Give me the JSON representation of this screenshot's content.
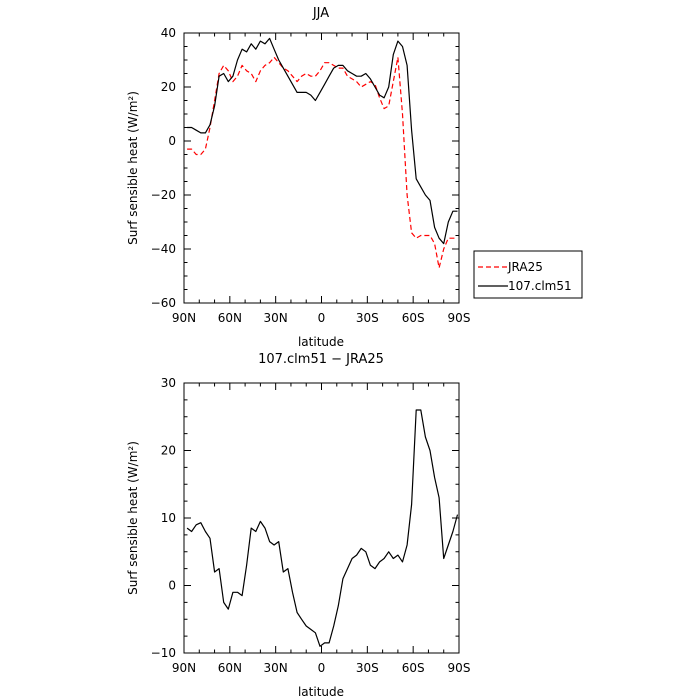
{
  "chart_data": [
    {
      "type": "line",
      "title": "JJA",
      "xlabel": "latitude",
      "ylabel": "Surf sensible heat (W/m²)",
      "xlim": [
        90,
        -90
      ],
      "ylim": [
        -60,
        40
      ],
      "x_ticks": [
        90,
        60,
        30,
        0,
        -30,
        -60,
        -90
      ],
      "x_tick_labels": [
        "90N",
        "60N",
        "30N",
        "0",
        "30S",
        "60S",
        "90S"
      ],
      "y_ticks": [
        -60,
        -40,
        -20,
        0,
        20,
        40
      ],
      "y_tick_labels": [
        "−60",
        "−40",
        "−20",
        "0",
        "20",
        "40"
      ],
      "legend_position": "outside-right",
      "series": [
        {
          "name": "JRA25",
          "color": "#ff0000",
          "style": "dashed",
          "x": [
            88,
            85,
            82,
            79,
            76,
            73,
            70,
            67,
            64,
            61,
            58,
            55,
            52,
            49,
            46,
            43,
            40,
            37,
            34,
            31,
            28,
            25,
            22,
            19,
            16,
            13,
            10,
            7,
            4,
            1,
            -2,
            -5,
            -8,
            -11,
            -14,
            -17,
            -20,
            -23,
            -26,
            -29,
            -32,
            -35,
            -38,
            -41,
            -44,
            -47,
            -50,
            -53,
            -56,
            -59,
            -62,
            -65,
            -68,
            -71,
            -74,
            -77,
            -80,
            -83,
            -86,
            -89
          ],
          "y": [
            -3,
            -3,
            -5,
            -5,
            -3,
            5,
            15,
            25,
            28,
            26,
            22,
            24,
            28,
            26,
            25,
            22,
            26,
            28,
            29,
            31,
            29,
            27,
            26,
            24,
            22,
            24,
            25,
            24,
            24,
            26,
            29,
            29,
            28,
            27,
            27,
            24,
            23,
            22,
            20,
            21,
            22,
            21,
            16,
            12,
            13,
            22,
            31,
            10,
            -20,
            -34,
            -36,
            -35,
            -35,
            -35,
            -38,
            -47,
            -40,
            -36,
            -36,
            -36
          ]
        },
        {
          "name": "107.clm51",
          "color": "#000000",
          "style": "solid",
          "x": [
            88,
            85,
            82,
            79,
            76,
            73,
            70,
            67,
            64,
            61,
            58,
            55,
            52,
            49,
            46,
            43,
            40,
            37,
            34,
            31,
            28,
            25,
            22,
            19,
            16,
            13,
            10,
            7,
            4,
            1,
            -2,
            -5,
            -8,
            -11,
            -14,
            -17,
            -20,
            -23,
            -26,
            -29,
            -32,
            -35,
            -38,
            -41,
            -44,
            -47,
            -50,
            -53,
            -56,
            -59,
            -62,
            -65,
            -68,
            -71,
            -74,
            -77,
            -80,
            -83,
            -86,
            -89
          ],
          "y": [
            5,
            5,
            4,
            3,
            3,
            6,
            13,
            24,
            25,
            22,
            24,
            30,
            34,
            33,
            36,
            34,
            37,
            36,
            38,
            34,
            30,
            27,
            24,
            21,
            18,
            18,
            18,
            17,
            15,
            18,
            21,
            24,
            27,
            28,
            28,
            26,
            25,
            24,
            24,
            25,
            23,
            20,
            17,
            16,
            20,
            32,
            37,
            35,
            28,
            4,
            -14,
            -17,
            -20,
            -22,
            -32,
            -36,
            -38,
            -30,
            -26,
            -26
          ]
        }
      ]
    },
    {
      "type": "line",
      "title": "107.clm51 − JRA25",
      "xlabel": "latitude",
      "ylabel": "Surf sensible heat (W/m²)",
      "xlim": [
        90,
        -90
      ],
      "ylim": [
        -10,
        30
      ],
      "x_ticks": [
        90,
        60,
        30,
        0,
        -30,
        -60,
        -90
      ],
      "x_tick_labels": [
        "90N",
        "60N",
        "30N",
        "0",
        "30S",
        "60S",
        "90S"
      ],
      "y_ticks": [
        -10,
        0,
        10,
        20,
        30
      ],
      "y_tick_labels": [
        "−10",
        "0",
        "10",
        "20",
        "30"
      ],
      "series": [
        {
          "color": "#000000",
          "style": "solid",
          "x": [
            88,
            85,
            82,
            79,
            76,
            73,
            70,
            67,
            64,
            61,
            58,
            55,
            52,
            49,
            46,
            43,
            40,
            37,
            34,
            31,
            28,
            25,
            22,
            19,
            16,
            13,
            10,
            7,
            4,
            1,
            -2,
            -5,
            -8,
            -11,
            -14,
            -17,
            -20,
            -23,
            -26,
            -29,
            -32,
            -35,
            -38,
            -41,
            -44,
            -47,
            -50,
            -53,
            -56,
            -59,
            -62,
            -65,
            -68,
            -71,
            -74,
            -77,
            -80,
            -83,
            -86,
            -89
          ],
          "y": [
            8.5,
            8,
            9,
            9.3,
            8,
            7,
            2,
            2.5,
            -2.5,
            -3.5,
            -1,
            -1,
            -1.5,
            3,
            8.5,
            8,
            9.5,
            8.5,
            6.5,
            6,
            6.5,
            2,
            2.5,
            -1,
            -4,
            -5,
            -6,
            -6.5,
            -7,
            -9,
            -8.5,
            -8.5,
            -6,
            -3,
            1,
            2.5,
            4,
            4.5,
            5.5,
            5,
            3,
            2.5,
            3.5,
            4,
            5,
            4,
            4.5,
            3.5,
            6,
            12,
            26,
            26,
            22,
            20,
            16,
            13,
            4,
            6,
            8,
            10.5
          ]
        }
      ]
    }
  ]
}
